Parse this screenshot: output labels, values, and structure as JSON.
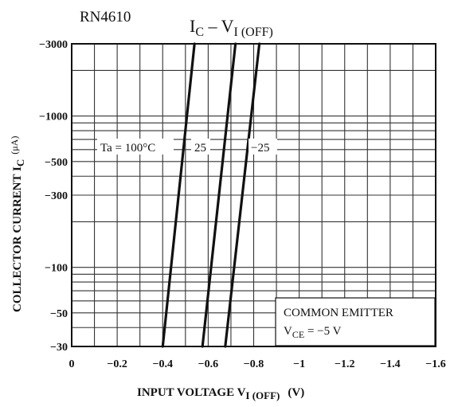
{
  "chart_data": {
    "type": "line",
    "part_number": "RN4610",
    "title": {
      "main": "I",
      "sub": "C",
      "dash": " – V",
      "sub2": "I (OFF)"
    },
    "xlabel": {
      "main": "INPUT VOLTAGE  V",
      "sub": "I (OFF)",
      "unit": "(V)"
    },
    "ylabel": {
      "main": "COLLECTOR CURRENT  I",
      "sub": "C",
      "unit": "(μA)"
    },
    "xlim": [
      0,
      -1.6
    ],
    "ylim": [
      -30,
      -3000
    ],
    "yscale": "log",
    "x_ticks": [
      {
        "value": 0,
        "label": "0"
      },
      {
        "value": -0.2,
        "label": "−0.2"
      },
      {
        "value": -0.4,
        "label": "−0.4"
      },
      {
        "value": -0.6,
        "label": "−0.6"
      },
      {
        "value": -0.8,
        "label": "−0.8"
      },
      {
        "value": -1.0,
        "label": "−1"
      },
      {
        "value": -1.2,
        "label": "−1.2"
      },
      {
        "value": -1.4,
        "label": "−1.4"
      },
      {
        "value": -1.6,
        "label": "−1.6"
      }
    ],
    "y_ticks": [
      {
        "value": -3000,
        "label": "−3000"
      },
      {
        "value": -1000,
        "label": "−1000"
      },
      {
        "value": -500,
        "label": "−500"
      },
      {
        "value": -300,
        "label": "−300"
      },
      {
        "value": -100,
        "label": "−100"
      },
      {
        "value": -50,
        "label": "−50"
      },
      {
        "value": -30,
        "label": "−30"
      }
    ],
    "y_gridlines": [
      -30,
      -40,
      -50,
      -60,
      -70,
      -80,
      -90,
      -100,
      -200,
      -300,
      -400,
      -500,
      -600,
      -700,
      -800,
      -900,
      -1000,
      -2000,
      -3000
    ],
    "x_gridlines": [
      0,
      -0.1,
      -0.2,
      -0.3,
      -0.4,
      -0.5,
      -0.6,
      -0.7,
      -0.8,
      -0.9,
      -1.0,
      -1.1,
      -1.2,
      -1.3,
      -1.4,
      -1.5,
      -1.6
    ],
    "grid": true,
    "series": [
      {
        "name": "Ta = 100°C",
        "points": [
          [
            -0.4,
            -30
          ],
          [
            -0.54,
            -3000
          ]
        ]
      },
      {
        "name": "25",
        "points": [
          [
            -0.575,
            -30
          ],
          [
            -0.72,
            -3000
          ]
        ]
      },
      {
        "name": "−25",
        "points": [
          [
            -0.675,
            -30
          ],
          [
            -0.825,
            -3000
          ]
        ]
      }
    ],
    "series_labels": [
      {
        "text": "Ta = 100°C"
      },
      {
        "text": "25"
      },
      {
        "text": "−25"
      }
    ],
    "legend_box": {
      "line1": "COMMON EMITTER",
      "line2_main": "V",
      "line2_sub": "CE",
      "line2_rest": " = −5 V"
    }
  }
}
